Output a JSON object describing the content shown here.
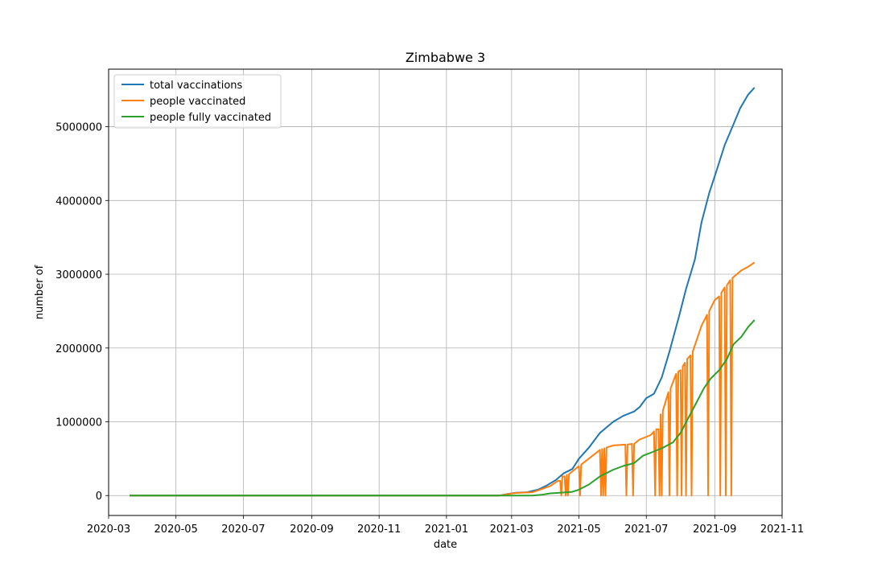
{
  "chart_data": {
    "type": "line",
    "title": "Zimbabwe 3",
    "xlabel": "date",
    "ylabel": "number of",
    "x_range": [
      "2020-03-01",
      "2021-11-01"
    ],
    "ylim": [
      -270000,
      5780000
    ],
    "grid": true,
    "legend_position": "top-left",
    "x_ticks": [
      "2020-03",
      "2020-05",
      "2020-07",
      "2020-09",
      "2020-11",
      "2021-01",
      "2021-03",
      "2021-05",
      "2021-07",
      "2021-09",
      "2021-11"
    ],
    "y_ticks": [
      0,
      1000000,
      2000000,
      3000000,
      4000000,
      5000000
    ],
    "y_tick_labels": [
      "0",
      "1000000",
      "2000000",
      "3000000",
      "4000000",
      "5000000"
    ],
    "series": [
      {
        "name": "total vaccinations",
        "color": "#1f77b4",
        "points": [
          [
            "2020-03-20",
            0
          ],
          [
            "2021-02-18",
            0
          ],
          [
            "2021-02-25",
            20000
          ],
          [
            "2021-03-05",
            38000
          ],
          [
            "2021-03-15",
            45000
          ],
          [
            "2021-03-25",
            80000
          ],
          [
            "2021-04-01",
            130000
          ],
          [
            "2021-04-10",
            210000
          ],
          [
            "2021-04-17",
            300000
          ],
          [
            "2021-04-25",
            360000
          ],
          [
            "2021-05-01",
            500000
          ],
          [
            "2021-05-10",
            650000
          ],
          [
            "2021-05-20",
            850000
          ],
          [
            "2021-06-01",
            1000000
          ],
          [
            "2021-06-10",
            1080000
          ],
          [
            "2021-06-20",
            1140000
          ],
          [
            "2021-06-25",
            1200000
          ],
          [
            "2021-07-01",
            1320000
          ],
          [
            "2021-07-08",
            1380000
          ],
          [
            "2021-07-15",
            1600000
          ],
          [
            "2021-07-22",
            1950000
          ],
          [
            "2021-07-31",
            2450000
          ],
          [
            "2021-08-06",
            2800000
          ],
          [
            "2021-08-14",
            3200000
          ],
          [
            "2021-08-20",
            3700000
          ],
          [
            "2021-08-27",
            4100000
          ],
          [
            "2021-09-03",
            4420000
          ],
          [
            "2021-09-10",
            4750000
          ],
          [
            "2021-09-17",
            5000000
          ],
          [
            "2021-09-24",
            5250000
          ],
          [
            "2021-10-01",
            5430000
          ],
          [
            "2021-10-07",
            5530000
          ]
        ]
      },
      {
        "name": "people vaccinated",
        "color": "#ff7f0e",
        "points": [
          [
            "2020-03-20",
            0
          ],
          [
            "2021-02-18",
            0
          ],
          [
            "2021-02-25",
            18000
          ],
          [
            "2021-03-05",
            35000
          ],
          [
            "2021-03-20",
            45000
          ],
          [
            "2021-03-25",
            70000
          ],
          [
            "2021-04-05",
            130000
          ],
          [
            "2021-04-12",
            200000
          ],
          [
            "2021-04-14",
            200000
          ],
          [
            "2021-04-15",
            0
          ],
          [
            "2021-04-16",
            260000
          ],
          [
            "2021-04-18",
            260000
          ],
          [
            "2021-04-19",
            0
          ],
          [
            "2021-04-20",
            280000
          ],
          [
            "2021-04-21",
            0
          ],
          [
            "2021-04-22",
            290000
          ],
          [
            "2021-05-01",
            400000
          ],
          [
            "2021-05-02",
            0
          ],
          [
            "2021-05-03",
            420000
          ],
          [
            "2021-05-15",
            560000
          ],
          [
            "2021-05-20",
            620000
          ],
          [
            "2021-05-21",
            0
          ],
          [
            "2021-05-22",
            630000
          ],
          [
            "2021-05-23",
            0
          ],
          [
            "2021-05-24",
            640000
          ],
          [
            "2021-05-25",
            0
          ],
          [
            "2021-05-26",
            650000
          ],
          [
            "2021-06-01",
            680000
          ],
          [
            "2021-06-12",
            690000
          ],
          [
            "2021-06-13",
            0
          ],
          [
            "2021-06-14",
            690000
          ],
          [
            "2021-06-18",
            700000
          ],
          [
            "2021-06-19",
            0
          ],
          [
            "2021-06-20",
            700000
          ],
          [
            "2021-06-25",
            760000
          ],
          [
            "2021-07-05",
            820000
          ],
          [
            "2021-07-08",
            870000
          ],
          [
            "2021-07-09",
            0
          ],
          [
            "2021-07-10",
            900000
          ],
          [
            "2021-07-12",
            900000
          ],
          [
            "2021-07-13",
            0
          ],
          [
            "2021-07-14",
            1100000
          ],
          [
            "2021-07-15",
            0
          ],
          [
            "2021-07-16",
            1150000
          ],
          [
            "2021-07-21",
            1400000
          ],
          [
            "2021-07-22",
            0
          ],
          [
            "2021-07-23",
            1450000
          ],
          [
            "2021-07-28",
            1650000
          ],
          [
            "2021-07-29",
            0
          ],
          [
            "2021-07-30",
            1680000
          ],
          [
            "2021-08-01",
            1700000
          ],
          [
            "2021-08-02",
            0
          ],
          [
            "2021-08-03",
            1750000
          ],
          [
            "2021-08-05",
            1800000
          ],
          [
            "2021-08-06",
            0
          ],
          [
            "2021-08-07",
            1850000
          ],
          [
            "2021-08-10",
            1900000
          ],
          [
            "2021-08-11",
            0
          ],
          [
            "2021-08-12",
            1950000
          ],
          [
            "2021-08-20",
            2300000
          ],
          [
            "2021-08-25",
            2450000
          ],
          [
            "2021-08-26",
            0
          ],
          [
            "2021-08-27",
            2500000
          ],
          [
            "2021-09-01",
            2650000
          ],
          [
            "2021-09-05",
            2700000
          ],
          [
            "2021-09-06",
            0
          ],
          [
            "2021-09-07",
            2750000
          ],
          [
            "2021-09-10",
            2820000
          ],
          [
            "2021-09-11",
            0
          ],
          [
            "2021-09-12",
            2850000
          ],
          [
            "2021-09-15",
            2920000
          ],
          [
            "2021-09-16",
            0
          ],
          [
            "2021-09-17",
            2950000
          ],
          [
            "2021-09-25",
            3050000
          ],
          [
            "2021-10-01",
            3100000
          ],
          [
            "2021-10-07",
            3160000
          ]
        ]
      },
      {
        "name": "people fully vaccinated",
        "color": "#2ca02c",
        "points": [
          [
            "2020-03-20",
            0
          ],
          [
            "2021-03-20",
            0
          ],
          [
            "2021-03-28",
            10000
          ],
          [
            "2021-04-05",
            30000
          ],
          [
            "2021-04-15",
            40000
          ],
          [
            "2021-04-25",
            50000
          ],
          [
            "2021-05-01",
            80000
          ],
          [
            "2021-05-10",
            150000
          ],
          [
            "2021-05-20",
            260000
          ],
          [
            "2021-06-01",
            350000
          ],
          [
            "2021-06-10",
            400000
          ],
          [
            "2021-06-20",
            440000
          ],
          [
            "2021-06-28",
            540000
          ],
          [
            "2021-07-05",
            580000
          ],
          [
            "2021-07-15",
            640000
          ],
          [
            "2021-07-25",
            720000
          ],
          [
            "2021-08-01",
            850000
          ],
          [
            "2021-08-08",
            1050000
          ],
          [
            "2021-08-15",
            1250000
          ],
          [
            "2021-08-22",
            1450000
          ],
          [
            "2021-08-28",
            1580000
          ],
          [
            "2021-09-05",
            1700000
          ],
          [
            "2021-09-12",
            1850000
          ],
          [
            "2021-09-18",
            2050000
          ],
          [
            "2021-09-25",
            2150000
          ],
          [
            "2021-10-01",
            2280000
          ],
          [
            "2021-10-07",
            2380000
          ]
        ]
      }
    ]
  }
}
